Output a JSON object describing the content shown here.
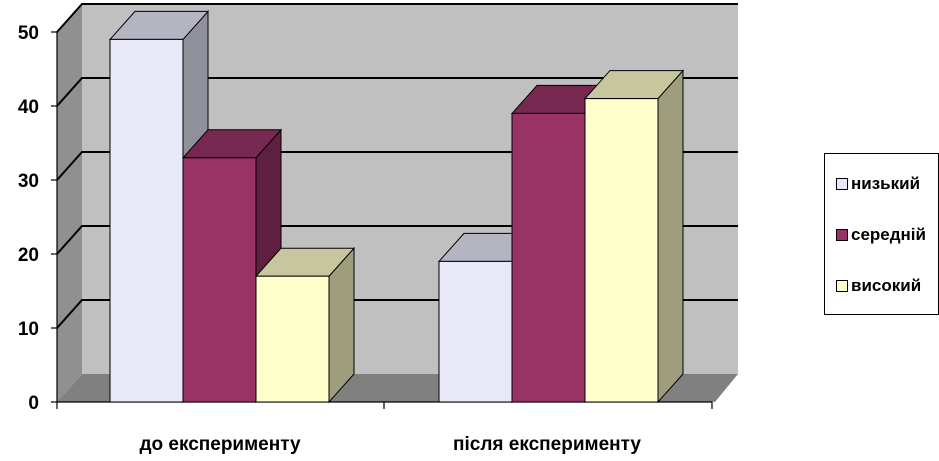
{
  "chart_data": {
    "type": "bar",
    "categories": [
      "до експерименту",
      "після експерименту"
    ],
    "series": [
      {
        "name": "низький",
        "values": [
          49,
          19
        ],
        "color": "#e8e8f8"
      },
      {
        "name": "середній",
        "values": [
          33,
          39
        ],
        "color": "#993366"
      },
      {
        "name": "високий",
        "values": [
          17,
          41
        ],
        "color": "#ffffcc"
      }
    ],
    "yticks": [
      "0",
      "10",
      "20",
      "30",
      "40",
      "50"
    ],
    "ylim": [
      0,
      50
    ],
    "grid": true,
    "legend_position": "right",
    "style": "3d-clustered"
  }
}
